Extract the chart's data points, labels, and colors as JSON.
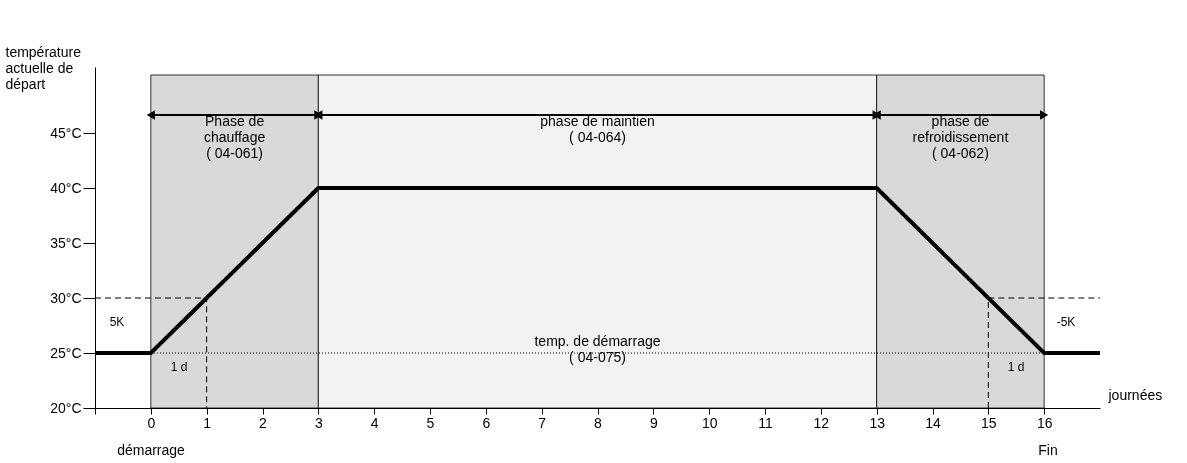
{
  "chart_data": {
    "type": "line",
    "xlabel": "journées",
    "ylabel": "température actuelle de départ",
    "xlim": [
      -1,
      17
    ],
    "ylim": [
      20,
      51
    ],
    "xticks": [
      {
        "value": -1,
        "label": null
      },
      0,
      1,
      2,
      3,
      4,
      5,
      6,
      7,
      8,
      9,
      10,
      11,
      12,
      13,
      14,
      15,
      16
    ],
    "yticks": [
      {
        "value": 20,
        "label": "20°C"
      },
      {
        "value": 25,
        "label": "25°C"
      },
      {
        "value": 30,
        "label": "30°C"
      },
      {
        "value": 35,
        "label": "35°C"
      },
      {
        "value": 40,
        "label": "40°C"
      },
      {
        "value": 45,
        "label": "45°C"
      }
    ],
    "grid": false,
    "series": [
      {
        "color": "#000000",
        "x": [
          -1,
          0,
          3,
          13,
          16,
          17
        ],
        "values": [
          25,
          25,
          40,
          40,
          25,
          25
        ],
        "line_style": "solid"
      },
      {
        "color": "#000000",
        "x": [
          -1,
          1,
          1
        ],
        "values": [
          30,
          30,
          20
        ],
        "line_style": "dashed"
      },
      {
        "color": "#000000",
        "x": [
          15,
          15,
          17
        ],
        "values": [
          20,
          30,
          30
        ],
        "line_style": "dashed"
      }
    ],
    "bands": [
      {
        "axis": "x",
        "from": 0,
        "to": 3,
        "label": "Phase de\nchauffage\n( 04-061)",
        "color": "#d9d9d9"
      },
      {
        "axis": "x",
        "from": 3,
        "to": 13,
        "label": "phase de maintien\n( 04-064)",
        "color": "#f2f2f2"
      },
      {
        "axis": "x",
        "from": 13,
        "to": 16,
        "label": "phase de\nrefroidissement\n( 04-062)",
        "color": "#d9d9d9"
      }
    ],
    "ref_lines": [
      {
        "axis": "y",
        "value": 25,
        "label": "temp. de démarrage\n( 04-075)",
        "line_style": "dotted",
        "color": "#000000"
      }
    ],
    "annotations": [
      "5K",
      "-5K",
      "1 d",
      "1 d",
      "démarrage",
      "Fin"
    ]
  }
}
